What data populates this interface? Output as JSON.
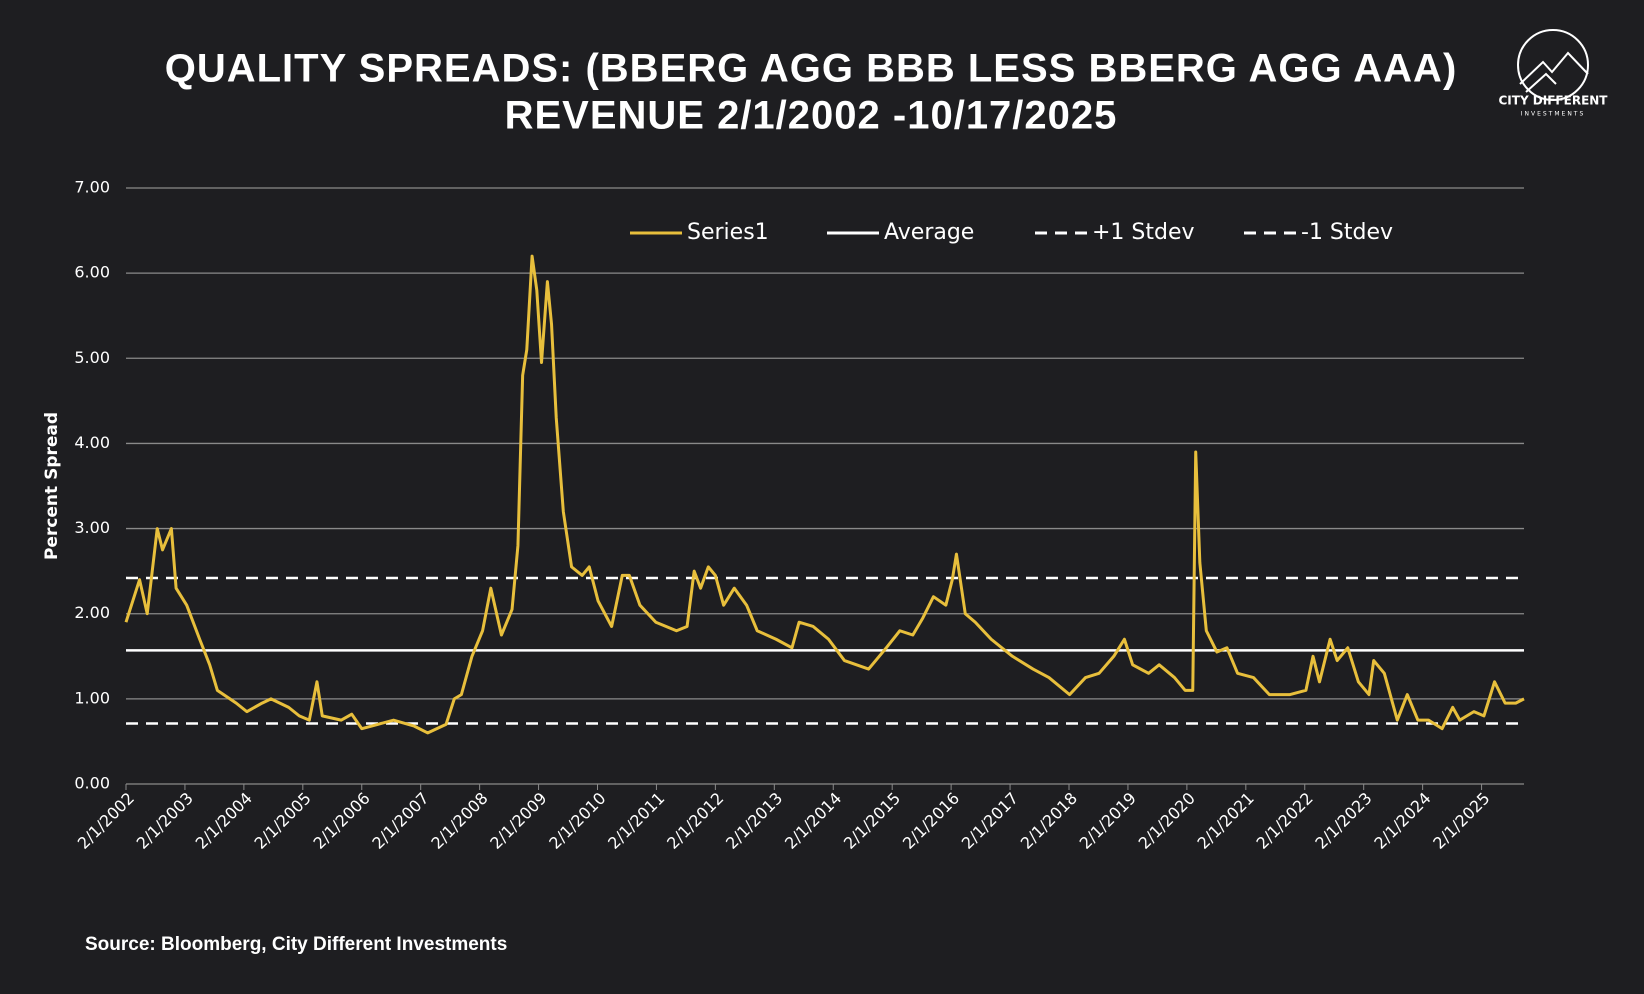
{
  "chart_data": {
    "type": "line",
    "title": "QUALITY SPREADS: (BBERG AGG BBB LESS BBERG AGG AAA)",
    "subtitle": "REVENUE 2/1/2002 -10/17/2025",
    "y_label": "Percent Spread",
    "source": "Source: Bloomberg, City Different Investments",
    "logo": {
      "name": "CITY DIFFERENT",
      "tagline": "INVESTMENTS"
    },
    "x": [
      2002.08,
      2002.31,
      2002.44,
      2002.61,
      2002.7,
      2002.85,
      2002.93,
      2003.11,
      2003.33,
      2003.5,
      2003.63,
      2003.95,
      2004.13,
      2004.39,
      2004.54,
      2004.84,
      2005.02,
      2005.19,
      2005.32,
      2005.41,
      2005.73,
      2005.91,
      2006.08,
      2006.35,
      2006.62,
      2006.97,
      2007.2,
      2007.51,
      2007.65,
      2007.77,
      2007.95,
      2008.13,
      2008.27,
      2008.45,
      2008.63,
      2008.73,
      2008.81,
      2008.88,
      2008.97,
      2009.05,
      2009.13,
      2009.23,
      2009.3,
      2009.38,
      2009.5,
      2009.64,
      2009.82,
      2009.94,
      2010.09,
      2010.32,
      2010.5,
      2010.62,
      2010.8,
      2011.07,
      2011.42,
      2011.6,
      2011.72,
      2011.83,
      2011.96,
      2012.08,
      2012.22,
      2012.4,
      2012.61,
      2012.79,
      2013.11,
      2013.38,
      2013.5,
      2013.74,
      2014.0,
      2014.27,
      2014.68,
      2014.98,
      2015.21,
      2015.43,
      2015.6,
      2015.78,
      2015.99,
      2016.1,
      2016.17,
      2016.32,
      2016.49,
      2016.76,
      2017.12,
      2017.47,
      2017.74,
      2018.09,
      2018.36,
      2018.59,
      2018.84,
      2019.02,
      2019.16,
      2019.43,
      2019.61,
      2019.87,
      2020.05,
      2020.18,
      2020.23,
      2020.3,
      2020.41,
      2020.59,
      2020.76,
      2020.94,
      2021.21,
      2021.48,
      2021.83,
      2022.1,
      2022.22,
      2022.33,
      2022.51,
      2022.63,
      2022.81,
      2022.99,
      2023.17,
      2023.25,
      2023.43,
      2023.65,
      2023.82,
      2024.0,
      2024.18,
      2024.41,
      2024.59,
      2024.71,
      2024.95,
      2025.12,
      2025.3,
      2025.48,
      2025.66,
      2025.8
    ],
    "series": [
      {
        "name": "Series1",
        "color": "#e8bf3c",
        "values": [
          1.9,
          2.4,
          2.0,
          3.0,
          2.75,
          3.0,
          2.3,
          2.1,
          1.7,
          1.4,
          1.1,
          0.95,
          0.85,
          0.95,
          1.0,
          0.9,
          0.8,
          0.75,
          1.2,
          0.8,
          0.75,
          0.82,
          0.65,
          0.7,
          0.75,
          0.68,
          0.6,
          0.7,
          1.0,
          1.05,
          1.5,
          1.8,
          2.3,
          1.75,
          2.05,
          2.8,
          4.8,
          5.1,
          6.2,
          5.8,
          4.95,
          5.9,
          5.4,
          4.3,
          3.2,
          2.55,
          2.45,
          2.55,
          2.15,
          1.85,
          2.45,
          2.45,
          2.1,
          1.9,
          1.8,
          1.85,
          2.5,
          2.3,
          2.55,
          2.45,
          2.1,
          2.3,
          2.1,
          1.8,
          1.7,
          1.6,
          1.9,
          1.85,
          1.7,
          1.45,
          1.35,
          1.6,
          1.8,
          1.75,
          1.95,
          2.2,
          2.1,
          2.4,
          2.7,
          2.0,
          1.9,
          1.7,
          1.5,
          1.35,
          1.25,
          1.05,
          1.25,
          1.3,
          1.5,
          1.7,
          1.4,
          1.3,
          1.4,
          1.25,
          1.1,
          1.1,
          3.9,
          2.6,
          1.8,
          1.55,
          1.6,
          1.3,
          1.25,
          1.05,
          1.05,
          1.1,
          1.5,
          1.2,
          1.7,
          1.45,
          1.6,
          1.2,
          1.05,
          1.45,
          1.3,
          0.75,
          1.05,
          0.75,
          0.75,
          0.65,
          0.9,
          0.75,
          0.85,
          0.8,
          1.2,
          0.95,
          0.95,
          1.0
        ]
      }
    ],
    "reference_lines": [
      {
        "name": "Average",
        "value": 1.57,
        "color": "#ffffff",
        "dashed": false
      },
      {
        "name": "+1 Stdev",
        "value": 2.42,
        "color": "#ffffff",
        "dashed": true
      },
      {
        "name": "-1 Stdev",
        "value": 0.71,
        "color": "#ffffff",
        "dashed": true
      }
    ],
    "xlim": [
      2002.08,
      2025.8
    ],
    "xticks": [
      {
        "value": 2002.08,
        "label": "2/1/2002"
      },
      {
        "value": 2003.08,
        "label": "2/1/2003"
      },
      {
        "value": 2004.08,
        "label": "2/1/2004"
      },
      {
        "value": 2005.08,
        "label": "2/1/2005"
      },
      {
        "value": 2006.08,
        "label": "2/1/2006"
      },
      {
        "value": 2007.08,
        "label": "2/1/2007"
      },
      {
        "value": 2008.08,
        "label": "2/1/2008"
      },
      {
        "value": 2009.08,
        "label": "2/1/2009"
      },
      {
        "value": 2010.08,
        "label": "2/1/2010"
      },
      {
        "value": 2011.08,
        "label": "2/1/2011"
      },
      {
        "value": 2012.08,
        "label": "2/1/2012"
      },
      {
        "value": 2013.08,
        "label": "2/1/2013"
      },
      {
        "value": 2014.08,
        "label": "2/1/2014"
      },
      {
        "value": 2015.08,
        "label": "2/1/2015"
      },
      {
        "value": 2016.08,
        "label": "2/1/2016"
      },
      {
        "value": 2017.08,
        "label": "2/1/2017"
      },
      {
        "value": 2018.08,
        "label": "2/1/2018"
      },
      {
        "value": 2019.08,
        "label": "2/1/2019"
      },
      {
        "value": 2020.08,
        "label": "2/1/2020"
      },
      {
        "value": 2021.08,
        "label": "2/1/2021"
      },
      {
        "value": 2022.08,
        "label": "2/1/2022"
      },
      {
        "value": 2023.08,
        "label": "2/1/2023"
      },
      {
        "value": 2024.08,
        "label": "2/1/2024"
      },
      {
        "value": 2025.08,
        "label": "2/1/2025"
      }
    ],
    "ylim": [
      0,
      7
    ],
    "yticks": [
      {
        "value": 0,
        "label": "0.00"
      },
      {
        "value": 1,
        "label": "1.00"
      },
      {
        "value": 2,
        "label": "2.00"
      },
      {
        "value": 3,
        "label": "3.00"
      },
      {
        "value": 4,
        "label": "4.00"
      },
      {
        "value": 5,
        "label": "5.00"
      },
      {
        "value": 6,
        "label": "6.00"
      },
      {
        "value": 7,
        "label": "7.00"
      }
    ],
    "grid": true
  }
}
